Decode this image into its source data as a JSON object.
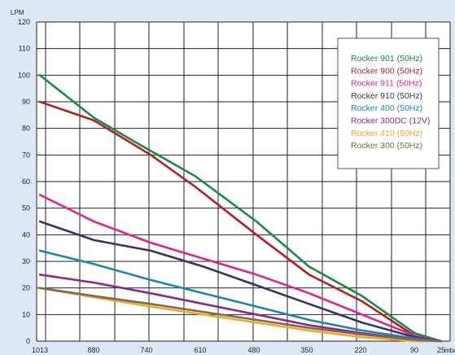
{
  "chart_data": {
    "type": "line",
    "title": "",
    "ylabel": "LPM",
    "xlabel": "mbar",
    "ylim": [
      0,
      120
    ],
    "y_ticks": [
      "0",
      "10",
      "20",
      "30",
      "40",
      "50",
      "60",
      "70",
      "80",
      "90",
      "100",
      "110",
      "120"
    ],
    "x_ticks": [
      "1013",
      "880",
      "740",
      "610",
      "480",
      "350",
      "220",
      "90",
      "25"
    ],
    "grid": true,
    "legend_position": "top-right",
    "series": [
      {
        "name": "Rocker 901 (50Hz)",
        "color": "#1b8a45",
        "points": [
          [
            1013,
            100
          ],
          [
            880,
            84
          ],
          [
            780,
            75
          ],
          [
            630,
            62
          ],
          [
            480,
            45
          ],
          [
            350,
            28
          ],
          [
            220,
            17
          ],
          [
            90,
            3
          ],
          [
            25,
            0
          ]
        ]
      },
      {
        "name": "Rocker 900 (50Hz)",
        "color": "#b51f24",
        "points": [
          [
            1013,
            90
          ],
          [
            880,
            83
          ],
          [
            740,
            70
          ],
          [
            630,
            58
          ],
          [
            480,
            40
          ],
          [
            350,
            25
          ],
          [
            220,
            15
          ],
          [
            90,
            2
          ],
          [
            25,
            0
          ]
        ]
      },
      {
        "name": "Rocker 911 (50Hz)",
        "color": "#e0248c",
        "points": [
          [
            1013,
            55
          ],
          [
            880,
            45
          ],
          [
            740,
            37
          ],
          [
            610,
            31
          ],
          [
            480,
            25
          ],
          [
            350,
            18
          ],
          [
            220,
            10
          ],
          [
            90,
            2
          ],
          [
            25,
            0
          ]
        ]
      },
      {
        "name": "Rocker 910 (50Hz)",
        "color": "#363566",
        "points": [
          [
            1013,
            45
          ],
          [
            880,
            38
          ],
          [
            740,
            34
          ],
          [
            610,
            28
          ],
          [
            480,
            21
          ],
          [
            350,
            14
          ],
          [
            220,
            7
          ],
          [
            90,
            1.5
          ],
          [
            25,
            0
          ]
        ]
      },
      {
        "name": "Rocker 400 (50Hz)",
        "color": "#1a86b8",
        "points": [
          [
            1013,
            34
          ],
          [
            880,
            29
          ],
          [
            740,
            23
          ],
          [
            610,
            18
          ],
          [
            480,
            13
          ],
          [
            350,
            8
          ],
          [
            220,
            4
          ],
          [
            90,
            1
          ],
          [
            25,
            0
          ]
        ]
      },
      {
        "name": "Rocker 300DC (12V)",
        "color": "#8a2a8f",
        "points": [
          [
            1013,
            25
          ],
          [
            880,
            22
          ],
          [
            740,
            18
          ],
          [
            610,
            14
          ],
          [
            480,
            10
          ],
          [
            350,
            6
          ],
          [
            220,
            3
          ],
          [
            90,
            0.5
          ],
          [
            25,
            0
          ]
        ]
      },
      {
        "name": "Rocker 410 (50Hz)",
        "color": "#f5a623",
        "points": [
          [
            1013,
            20
          ],
          [
            880,
            16.5
          ],
          [
            740,
            13
          ],
          [
            610,
            10
          ],
          [
            480,
            7
          ],
          [
            350,
            4
          ],
          [
            220,
            1.5
          ],
          [
            90,
            0
          ],
          [
            25,
            0
          ]
        ]
      },
      {
        "name": "Rocker 300 (50Hz)",
        "color": "#7b6a55",
        "points": [
          [
            1013,
            20
          ],
          [
            880,
            17
          ],
          [
            740,
            14
          ],
          [
            610,
            11
          ],
          [
            480,
            8
          ],
          [
            350,
            5
          ],
          [
            220,
            2.5
          ],
          [
            90,
            0.5
          ],
          [
            25,
            0
          ]
        ]
      }
    ]
  }
}
